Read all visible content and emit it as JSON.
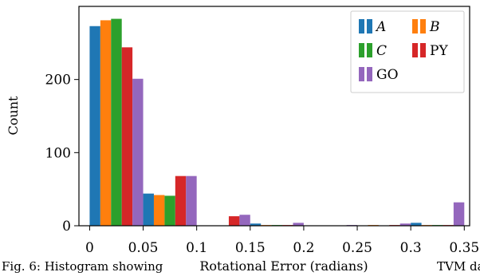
{
  "chart_data": {
    "type": "bar",
    "xlabel": "Rotational Error (radians)",
    "ylabel": "Count",
    "xlim": [
      -0.01,
      0.355
    ],
    "ylim": [
      0,
      300
    ],
    "bin_width": 0.05,
    "x_ticks": [
      0,
      0.05,
      0.1,
      0.15,
      0.2,
      0.25,
      0.3,
      0.35
    ],
    "x_tick_labels": [
      "0",
      "0.05",
      "0.1",
      "0.15",
      "0.2",
      "0.25",
      "0.3",
      "0.35"
    ],
    "y_ticks": [
      0,
      100,
      200
    ],
    "y_tick_labels": [
      "0",
      "100",
      "200"
    ],
    "bins": [
      [
        0.0,
        0.05
      ],
      [
        0.05,
        0.1
      ],
      [
        0.1,
        0.15
      ],
      [
        0.15,
        0.2
      ],
      [
        0.2,
        0.25
      ],
      [
        0.25,
        0.3
      ],
      [
        0.3,
        0.35
      ]
    ],
    "series": [
      {
        "name": "A",
        "italic": true,
        "color": "#1f77b4",
        "values": [
          273,
          44,
          0,
          3,
          0,
          0,
          4
        ]
      },
      {
        "name": "B",
        "italic": true,
        "color": "#ff7f0e",
        "values": [
          281,
          42,
          0,
          1,
          0,
          1,
          1
        ]
      },
      {
        "name": "C",
        "italic": true,
        "color": "#2ca02c",
        "values": [
          283,
          41,
          0,
          1,
          0,
          0,
          1
        ]
      },
      {
        "name": "PY",
        "italic": false,
        "color": "#d62728",
        "values": [
          244,
          68,
          13,
          1,
          0,
          1,
          1
        ]
      },
      {
        "name": "GO",
        "italic": false,
        "color": "#9467bd",
        "values": [
          201,
          68,
          15,
          4,
          1,
          3,
          32
        ]
      }
    ],
    "legend_position": "top-right",
    "grid": false
  },
  "caption_fragments": [
    "Fig. 6: Histogram showing",
    "TVM data"
  ]
}
